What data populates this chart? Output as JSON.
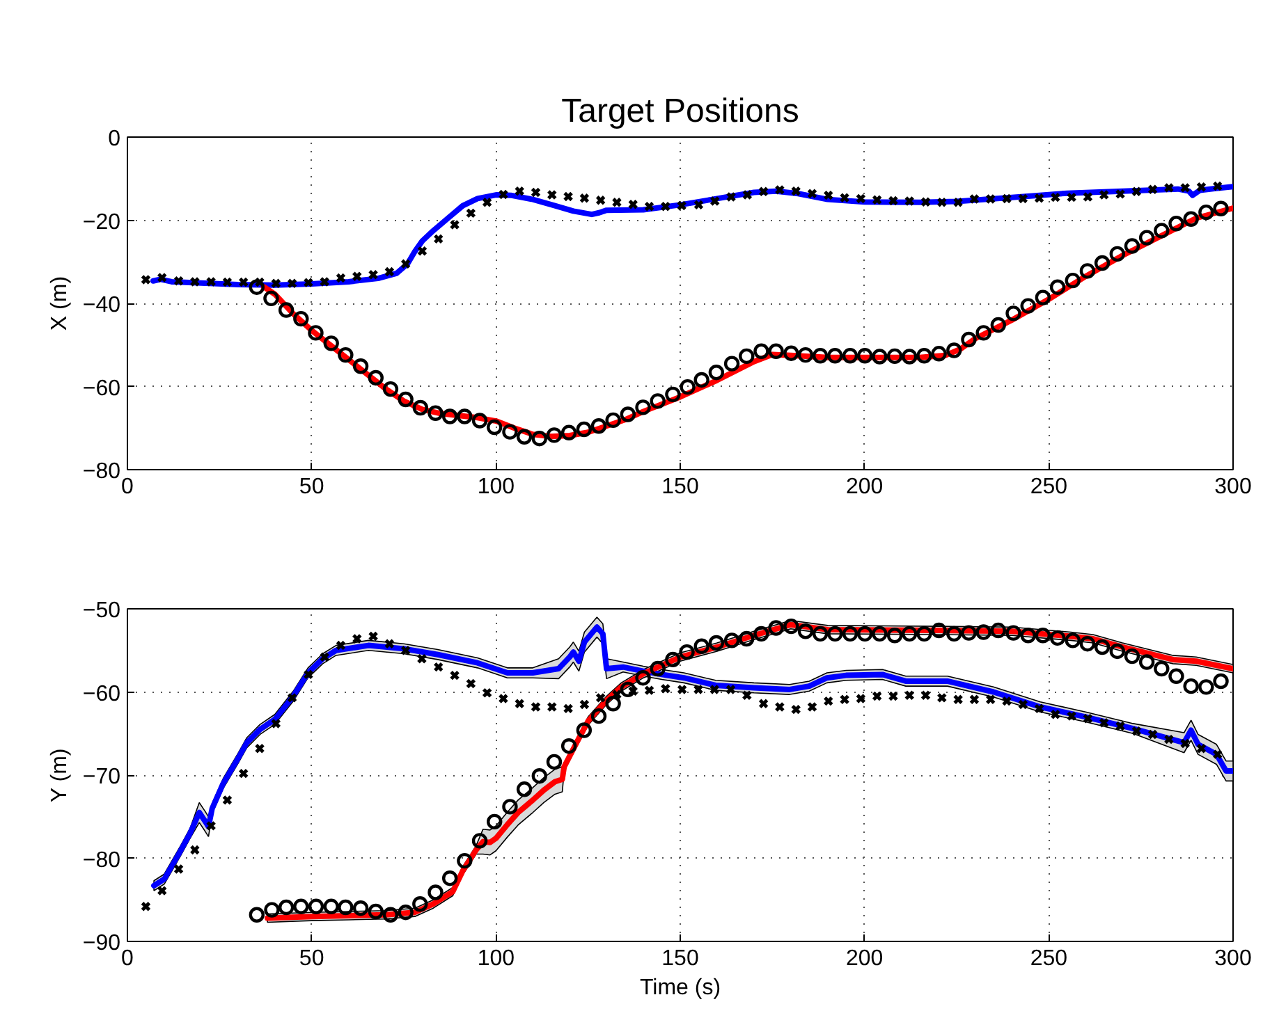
{
  "chart_data": [
    {
      "type": "line",
      "title": "Target Positions",
      "ylabel": "X (m)",
      "xlim": [
        0,
        300
      ],
      "xticks": [
        0,
        50,
        100,
        150,
        200,
        250,
        300
      ],
      "ylim": [
        -80,
        0
      ],
      "yticks": [
        -80,
        -60,
        -40,
        -20,
        0
      ],
      "grid": true,
      "line_style": "solid",
      "series": [
        {
          "color": "#0000ff",
          "x": [
            7,
            9,
            12,
            20,
            30,
            40,
            50,
            60,
            68,
            73,
            76,
            78,
            80,
            83,
            87,
            91,
            95,
            100,
            104,
            110,
            116,
            121,
            126,
            128,
            130,
            140,
            150,
            160,
            170,
            176,
            182,
            190,
            200,
            215,
            225,
            240,
            255,
            270,
            285,
            288,
            289,
            291,
            295,
            300
          ],
          "values": [
            -34.6,
            -34.2,
            -34.8,
            -35.1,
            -35.5,
            -35.6,
            -35.3,
            -34.8,
            -34.0,
            -32.8,
            -30.5,
            -27.5,
            -25,
            -22.5,
            -19.5,
            -16.5,
            -14.8,
            -13.9,
            -14.0,
            -15.0,
            -16.5,
            -17.8,
            -18.6,
            -18.2,
            -17.6,
            -17.5,
            -16.3,
            -14.8,
            -13.3,
            -13.0,
            -13.6,
            -15.0,
            -15.6,
            -15.7,
            -15.5,
            -14.5,
            -13.5,
            -13.0,
            -12.5,
            -13.0,
            -14.0,
            -12.8,
            -12.4,
            -11.9
          ]
        },
        {
          "color": "#ff0000",
          "x": [
            37,
            40,
            45,
            50,
            55,
            60,
            65,
            70,
            75,
            80,
            85,
            90,
            95,
            100,
            105,
            110,
            115,
            120,
            125,
            130,
            135,
            140,
            150,
            160,
            170,
            175,
            180,
            190,
            200,
            215,
            222,
            226,
            230,
            240,
            250,
            260,
            270,
            280,
            290,
            300
          ],
          "values": [
            -36,
            -37.8,
            -42.5,
            -46.5,
            -50,
            -53.5,
            -57,
            -60.5,
            -63.5,
            -65.5,
            -66.5,
            -67,
            -67.5,
            -68.3,
            -70,
            -71.5,
            -72,
            -71.8,
            -71,
            -69.5,
            -68,
            -66,
            -62.5,
            -58.5,
            -54,
            -52.3,
            -52.5,
            -53,
            -53,
            -53,
            -52.5,
            -51,
            -48.5,
            -44,
            -39,
            -33.5,
            -28.5,
            -24,
            -19.5,
            -17.1
          ]
        },
        {
          "type": "scatter",
          "marker": "cross",
          "color": "#000000",
          "x": [
            5,
            9.4,
            13.9,
            18.3,
            22.7,
            27.1,
            31.5,
            35.9,
            40.3,
            44.7,
            49.1,
            53.5,
            57.9,
            62.3,
            66.7,
            71.1,
            75.5,
            80,
            84.4,
            88.8,
            93.2,
            97.6,
            102,
            106.4,
            110.8,
            115.2,
            119.6,
            124,
            128.4,
            132.8,
            137.2,
            141.6,
            146,
            150.4,
            155,
            159.4,
            163.8,
            168.2,
            172.6,
            177,
            181.4,
            185.8,
            190.2,
            194.6,
            199,
            203.4,
            207.8,
            212.2,
            216.6,
            221,
            225.4,
            229.8,
            234.2,
            238.6,
            243,
            247.4,
            251.8,
            256.2,
            260.6,
            265,
            269.4,
            273.8,
            278.2,
            282.6,
            287,
            291.4,
            295.8
          ],
          "values": [
            -34.3,
            -33.8,
            -34.6,
            -34.8,
            -34.8,
            -34.9,
            -34.9,
            -34.9,
            -35.2,
            -35.2,
            -35.0,
            -34.8,
            -33.9,
            -33.5,
            -33.1,
            -32.4,
            -30.5,
            -27.4,
            -24.5,
            -21.1,
            -18.3,
            -15.7,
            -13.8,
            -13.0,
            -13.3,
            -13.9,
            -14.3,
            -14.7,
            -15.2,
            -15.7,
            -16.2,
            -16.7,
            -16.7,
            -16.5,
            -16.3,
            -15.4,
            -14.4,
            -13.9,
            -13.1,
            -12.7,
            -13.0,
            -13.6,
            -14.0,
            -14.6,
            -14.8,
            -15.1,
            -15.3,
            -15.4,
            -15.6,
            -15.7,
            -15.7,
            -14.9,
            -14.9,
            -14.8,
            -14.8,
            -14.7,
            -14.5,
            -14.5,
            -14.4,
            -13.9,
            -13.7,
            -13.1,
            -12.6,
            -12.2,
            -12.2,
            -12.0,
            -11.8
          ]
        },
        {
          "type": "scatter",
          "marker": "circle",
          "color": "#000000",
          "x": [
            35.1,
            39,
            43.1,
            47.1,
            51.1,
            55.3,
            59.2,
            63.3,
            67.4,
            71.4,
            75.5,
            79.5,
            83.6,
            87.5,
            91.5,
            95.6,
            99.6,
            103.8,
            107.7,
            111.8,
            115.8,
            119.8,
            123.9,
            127.9,
            131.8,
            135.8,
            139.9,
            143.9,
            148,
            152,
            155.8,
            159.8,
            164,
            168,
            172,
            176,
            180.1,
            184,
            188,
            192,
            196.1,
            200.1,
            204.1,
            208.2,
            212.2,
            216.2,
            220.2,
            224.3,
            228.3,
            232.3,
            236.3,
            240.4,
            244.4,
            248.4,
            252.4,
            256.5,
            260.5,
            264.5,
            268.6,
            272.6,
            276.6,
            280.6,
            284.6,
            288.6,
            292.7,
            296.7
          ],
          "values": [
            -36.1,
            -38.8,
            -41.6,
            -43.7,
            -47.1,
            -49.6,
            -52.4,
            -55.1,
            -57.9,
            -60.6,
            -63.1,
            -65.1,
            -66.4,
            -67.2,
            -67.2,
            -68.2,
            -69.8,
            -70.9,
            -72.1,
            -72.5,
            -71.7,
            -71.1,
            -70.3,
            -69.5,
            -68.1,
            -66.7,
            -65.0,
            -63.5,
            -61.9,
            -60.1,
            -58.4,
            -56.6,
            -54.5,
            -52.7,
            -51.5,
            -51.5,
            -52.0,
            -52.4,
            -52.6,
            -52.6,
            -52.6,
            -52.6,
            -52.8,
            -52.7,
            -52.8,
            -52.6,
            -52.1,
            -51.3,
            -48.7,
            -47.1,
            -45.2,
            -42.4,
            -40.6,
            -38.6,
            -36.1,
            -34.5,
            -32.2,
            -30.3,
            -28.1,
            -26.2,
            -24.2,
            -22.5,
            -20.8,
            -19.7,
            -18.1,
            -17.2
          ]
        }
      ]
    },
    {
      "type": "line",
      "xlabel": "Time (s)",
      "ylabel": "Y (m)",
      "xlim": [
        0,
        300
      ],
      "xticks": [
        0,
        50,
        100,
        150,
        200,
        250,
        300
      ],
      "ylim": [
        -90,
        -50
      ],
      "yticks": [
        -90,
        -80,
        -70,
        -60,
        -50
      ],
      "grid": true,
      "line_style": "solid",
      "series": [
        {
          "color": "#0000ff",
          "x": [
            7.2,
            10,
            14.3,
            17,
            19.5,
            21,
            22,
            23,
            26,
            30,
            32.4,
            36,
            40,
            45,
            49,
            53,
            56.6,
            65.4,
            75,
            84.2,
            95,
            103.1,
            110,
            117,
            120,
            121,
            122.5,
            124,
            127.4,
            129,
            130,
            134.5,
            140,
            145,
            151,
            159.6,
            170,
            179.7,
            185,
            189.8,
            195,
            204.9,
            211.2,
            222.5,
            235,
            247.7,
            260,
            272.9,
            286.7,
            288.6,
            290.5,
            295.5,
            298.1,
            300
          ],
          "values": [
            -83.3,
            -82.5,
            -79.2,
            -77,
            -74.5,
            -75.5,
            -76.2,
            -74,
            -71,
            -68,
            -66.1,
            -64.5,
            -63.3,
            -60.5,
            -57.7,
            -56,
            -55,
            -54.4,
            -54.8,
            -55.5,
            -56.5,
            -57.7,
            -57.7,
            -57.2,
            -55.8,
            -55.2,
            -56.3,
            -54,
            -52.2,
            -53,
            -57.2,
            -57,
            -57.5,
            -57.9,
            -58.3,
            -59.2,
            -59.5,
            -59.7,
            -59.3,
            -58.3,
            -58,
            -57.9,
            -58.7,
            -58.7,
            -60,
            -61.8,
            -63,
            -64.4,
            -66.1,
            -64.6,
            -66.3,
            -67.5,
            -69.5,
            -69.5
          ],
          "lower": [
            -83.9,
            -83.1,
            -79.8,
            -77.6,
            -75.7,
            -76.7,
            -77.4,
            -74.6,
            -71.6,
            -68.6,
            -66.7,
            -65.1,
            -63.9,
            -61.1,
            -58.3,
            -56.6,
            -55.6,
            -55.0,
            -55.4,
            -56.1,
            -57.1,
            -58.3,
            -58.3,
            -58.4,
            -57.0,
            -56.4,
            -57.5,
            -55.2,
            -53.4,
            -54.2,
            -58.4,
            -57.6,
            -58.1,
            -58.5,
            -58.9,
            -59.8,
            -60.1,
            -60.3,
            -59.9,
            -58.9,
            -58.6,
            -58.5,
            -59.3,
            -59.3,
            -60.6,
            -62.4,
            -63.6,
            -65.0,
            -67.3,
            -65.8,
            -67.5,
            -68.7,
            -70.7,
            -70.7
          ],
          "upper": [
            -82.7,
            -81.9,
            -78.6,
            -76.4,
            -73.3,
            -74.3,
            -75.0,
            -73.4,
            -70.4,
            -67.4,
            -65.5,
            -63.9,
            -62.7,
            -59.9,
            -57.1,
            -55.4,
            -54.4,
            -53.8,
            -54.2,
            -54.9,
            -55.9,
            -57.1,
            -57.1,
            -56.0,
            -54.6,
            -54.0,
            -55.1,
            -52.8,
            -51.0,
            -51.8,
            -56.0,
            -56.4,
            -56.9,
            -57.3,
            -57.7,
            -58.6,
            -58.9,
            -59.1,
            -58.7,
            -57.7,
            -57.4,
            -57.3,
            -58.1,
            -58.1,
            -59.4,
            -61.2,
            -62.4,
            -63.8,
            -64.9,
            -63.4,
            -65.1,
            -66.3,
            -68.3,
            -68.3
          ]
        },
        {
          "color": "#ff0000",
          "x": [
            38,
            50,
            60,
            70,
            78,
            83,
            88.3,
            91,
            94.6,
            96.5,
            98.4,
            100,
            103,
            106,
            110,
            113,
            116,
            118,
            118.5,
            122,
            125,
            130,
            134,
            140,
            150,
            160,
            170,
            180,
            190,
            220,
            240,
            256,
            262,
            270,
            283.7,
            290,
            300
          ],
          "values": [
            -87.2,
            -87,
            -86.9,
            -86.8,
            -86.5,
            -85.5,
            -84,
            -81.5,
            -79,
            -78,
            -78.1,
            -77.6,
            -76,
            -74.5,
            -73,
            -71.8,
            -70.8,
            -70.5,
            -69,
            -66,
            -63.5,
            -61,
            -59.4,
            -57.8,
            -55.8,
            -54.6,
            -53.2,
            -51.9,
            -52.5,
            -52.6,
            -52.7,
            -53.3,
            -53.6,
            -54.6,
            -56.1,
            -56.3,
            -57.2
          ],
          "lower": [
            -87.7,
            -87.5,
            -87.4,
            -87.3,
            -87.0,
            -86.0,
            -84.5,
            -82.0,
            -79.5,
            -79.5,
            -79.6,
            -79.1,
            -77.5,
            -76.0,
            -74.5,
            -73.3,
            -72.3,
            -72.0,
            -69.5,
            -66.5,
            -64.0,
            -61.5,
            -59.9,
            -58.3,
            -56.3,
            -55.1,
            -53.7,
            -52.4,
            -53.0,
            -53.1,
            -53.2,
            -53.8,
            -54.1,
            -55.1,
            -56.6,
            -56.8,
            -57.7
          ],
          "upper": [
            -86.7,
            -86.5,
            -86.4,
            -86.3,
            -86.0,
            -85.0,
            -83.5,
            -81.0,
            -78.5,
            -76.5,
            -76.6,
            -76.1,
            -74.5,
            -73.0,
            -71.5,
            -70.3,
            -69.3,
            -69.0,
            -68.5,
            -65.5,
            -63.0,
            -60.5,
            -58.9,
            -57.3,
            -55.3,
            -54.1,
            -52.7,
            -51.4,
            -52.0,
            -52.1,
            -52.2,
            -52.8,
            -53.1,
            -54.1,
            -55.6,
            -55.8,
            -56.7
          ]
        },
        {
          "type": "scatter",
          "marker": "cross",
          "color": "#000000",
          "x": [
            5,
            9.4,
            13.9,
            18.3,
            22.7,
            27.1,
            31.5,
            35.9,
            40.3,
            44.7,
            49.1,
            53.5,
            57.9,
            62.3,
            66.7,
            71.1,
            75.5,
            79.9,
            84.4,
            88.8,
            93.2,
            97.6,
            102,
            106.4,
            110.8,
            115.2,
            119.6,
            124,
            128.4,
            132.8,
            137.2,
            141.6,
            146,
            150.5,
            154.9,
            159.3,
            163.7,
            168.1,
            172.6,
            177,
            181.4,
            185.8,
            190.2,
            194.6,
            199,
            203.4,
            207.8,
            212.2,
            216.6,
            221,
            225.4,
            229.8,
            234.2,
            238.6,
            243,
            247.4,
            251.8,
            256.2,
            260.6,
            265,
            269.4,
            273.8,
            278.2,
            282.6,
            287,
            291.4,
            295.8
          ],
          "values": [
            -85.8,
            -83.9,
            -81.3,
            -79.0,
            -76.1,
            -73.0,
            -69.8,
            -66.8,
            -63.8,
            -60.7,
            -57.9,
            -55.8,
            -54.4,
            -53.6,
            -53.3,
            -54.2,
            -55.0,
            -56.0,
            -57.0,
            -58.0,
            -59.0,
            -60.1,
            -60.8,
            -61.4,
            -61.8,
            -61.8,
            -62.0,
            -61.5,
            -60.7,
            -60.3,
            -59.9,
            -59.8,
            -59.6,
            -59.7,
            -59.7,
            -59.7,
            -59.7,
            -60.4,
            -61.4,
            -61.8,
            -62.1,
            -61.8,
            -61.1,
            -60.9,
            -60.8,
            -60.5,
            -60.5,
            -60.4,
            -60.4,
            -60.7,
            -60.9,
            -60.9,
            -60.9,
            -61.1,
            -61.5,
            -62.0,
            -62.7,
            -62.9,
            -63.2,
            -63.7,
            -64.1,
            -64.7,
            -65.1,
            -65.7,
            -66.2,
            -66.8,
            -67.5
          ]
        },
        {
          "type": "scatter",
          "marker": "circle",
          "color": "#000000",
          "x": [
            35.1,
            39.2,
            43.1,
            47.1,
            51.2,
            55.3,
            59.2,
            63.3,
            67.4,
            71.4,
            75.5,
            79.4,
            83.6,
            87.5,
            91.5,
            95.6,
            99.6,
            103.8,
            107.7,
            111.8,
            115.8,
            119.8,
            123.9,
            127.9,
            131.8,
            135.8,
            139.9,
            143.9,
            148,
            151.8,
            155.8,
            159.8,
            164,
            168,
            172,
            176,
            180.1,
            184,
            188,
            192,
            196.1,
            200.1,
            204.1,
            208.2,
            212.2,
            216.2,
            220.2,
            224.3,
            228.3,
            232.3,
            236.3,
            240.4,
            244.4,
            248.4,
            252.4,
            256.5,
            260.5,
            264.5,
            268.6,
            272.6,
            276.6,
            280.6,
            284.6,
            288.6,
            292.7,
            296.7
          ],
          "values": [
            -86.8,
            -86.2,
            -85.9,
            -85.8,
            -85.8,
            -85.8,
            -85.9,
            -86.0,
            -86.4,
            -86.8,
            -86.5,
            -85.5,
            -84.1,
            -82.4,
            -80.3,
            -77.9,
            -75.6,
            -73.8,
            -71.7,
            -70.1,
            -68.4,
            -66.5,
            -64.6,
            -62.9,
            -61.4,
            -59.7,
            -58.3,
            -57.2,
            -56.1,
            -55.2,
            -54.5,
            -54.1,
            -53.8,
            -53.6,
            -53.0,
            -52.3,
            -52.1,
            -52.7,
            -53.0,
            -53.0,
            -53.0,
            -53.0,
            -53.0,
            -53.2,
            -53.0,
            -53.0,
            -52.6,
            -53.0,
            -52.9,
            -52.8,
            -52.6,
            -52.9,
            -53.2,
            -53.2,
            -53.5,
            -53.8,
            -54.2,
            -54.6,
            -55.1,
            -55.7,
            -56.4,
            -57.2,
            -58.1,
            -59.3,
            -59.4,
            -58.7
          ]
        }
      ]
    }
  ]
}
